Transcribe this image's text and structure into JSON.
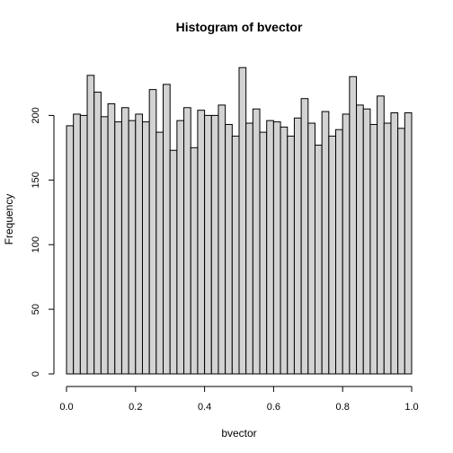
{
  "chart_data": {
    "type": "bar",
    "title": "Histogram of bvector",
    "xlabel": "bvector",
    "ylabel": "Frequency",
    "xlim": [
      0,
      1
    ],
    "ylim": [
      0,
      240
    ],
    "bin_width": 0.02,
    "bar_fill": "#d3d3d3",
    "bar_stroke": "#000000",
    "x_ticks": [
      "0.0",
      "0.2",
      "0.4",
      "0.6",
      "0.8",
      "1.0"
    ],
    "y_ticks": [
      "0",
      "50",
      "100",
      "150",
      "200"
    ],
    "bin_starts": [
      0.0,
      0.02,
      0.04,
      0.06,
      0.08,
      0.1,
      0.12,
      0.14,
      0.16,
      0.18,
      0.2,
      0.22,
      0.24,
      0.26,
      0.28,
      0.3,
      0.32,
      0.34,
      0.36,
      0.38,
      0.4,
      0.42,
      0.44,
      0.46,
      0.48,
      0.5,
      0.52,
      0.54,
      0.56,
      0.58,
      0.6,
      0.62,
      0.64,
      0.66,
      0.68,
      0.7,
      0.72,
      0.74,
      0.76,
      0.78,
      0.8,
      0.82,
      0.84,
      0.86,
      0.88,
      0.9,
      0.92,
      0.94,
      0.96,
      0.98
    ],
    "values": [
      192,
      201,
      200,
      231,
      218,
      199,
      209,
      195,
      206,
      196,
      201,
      195,
      220,
      187,
      224,
      173,
      196,
      206,
      175,
      204,
      200,
      200,
      208,
      193,
      184,
      237,
      194,
      205,
      187,
      196,
      195,
      191,
      184,
      198,
      213,
      194,
      177,
      203,
      184,
      189,
      201,
      230,
      208,
      205,
      193,
      215,
      194,
      202,
      190,
      202
    ]
  }
}
